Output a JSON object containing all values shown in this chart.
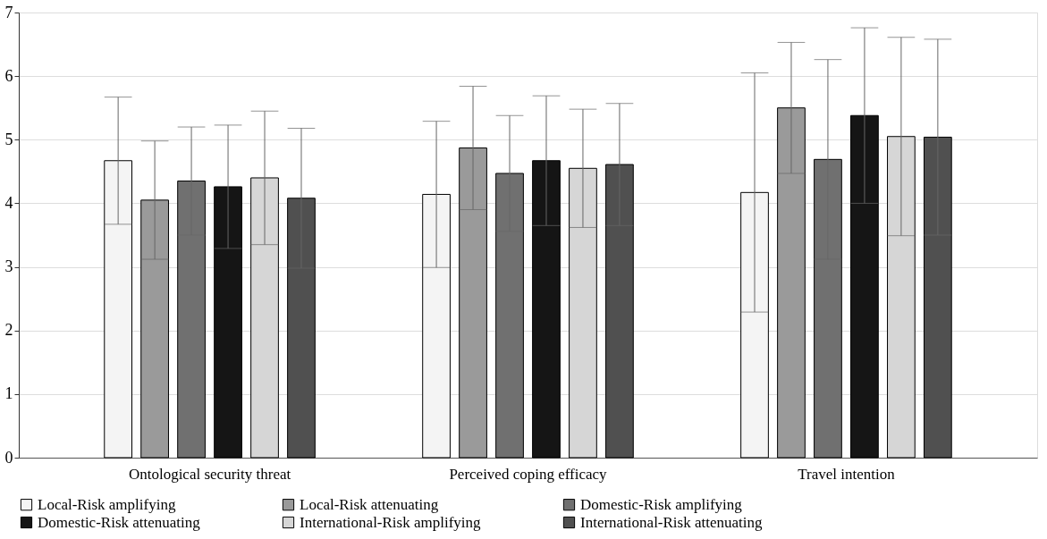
{
  "chart_data": {
    "type": "bar",
    "categories": [
      "Ontological security threat",
      "Perceived coping efficacy",
      "Travel intention"
    ],
    "series": [
      {
        "name": "Local-Risk amplifying",
        "color": "#f4f4f4",
        "values": [
          4.67,
          4.14,
          4.17
        ],
        "errors": [
          1.0,
          1.15,
          1.88
        ]
      },
      {
        "name": "Local-Risk attenuating",
        "color": "#9a9a9a",
        "values": [
          4.05,
          4.87,
          5.5
        ],
        "errors": [
          0.93,
          0.97,
          1.03
        ]
      },
      {
        "name": "Domestic-Risk amplifying",
        "color": "#707070",
        "values": [
          4.35,
          4.47,
          4.69
        ],
        "errors": [
          0.85,
          0.91,
          1.57
        ]
      },
      {
        "name": "Domestic-Risk attenuating",
        "color": "#151515",
        "values": [
          4.26,
          4.67,
          5.38
        ],
        "errors": [
          0.97,
          1.02,
          1.38
        ]
      },
      {
        "name": "International-Risk amplifying",
        "color": "#d6d6d6",
        "values": [
          4.4,
          4.55,
          5.05
        ],
        "errors": [
          1.05,
          0.93,
          1.56
        ]
      },
      {
        "name": "International-Risk attenuating",
        "color": "#505050",
        "values": [
          4.08,
          4.61,
          5.04
        ],
        "errors": [
          1.1,
          0.96,
          1.54
        ]
      }
    ],
    "ylim": [
      0,
      7
    ],
    "yticks": [
      0,
      1,
      2,
      3,
      4,
      5,
      6,
      7
    ],
    "grid": "y",
    "legend": "bottom"
  }
}
